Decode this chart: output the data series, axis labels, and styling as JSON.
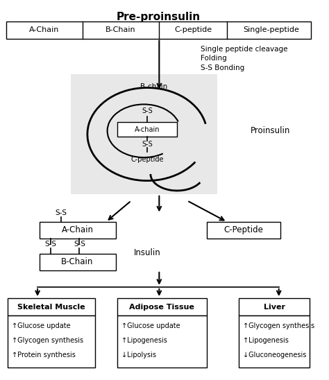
{
  "title": "Pre-proinsulin",
  "title_fontsize": 11,
  "header_cells": [
    "A-Chain",
    "B-Chain",
    "C-peptide",
    "Single-peptide"
  ],
  "step1_texts": [
    "Single peptide cleavage",
    "Folding",
    "S-S Bonding"
  ],
  "proinsulin_label": "Proinsulin",
  "insulin_label": "Insulin",
  "achain_label": "A-Chain",
  "bchain_label": "B-Chain",
  "cpeptide_label": "C-Peptide",
  "targets": [
    "Skeletal Muscle",
    "Adipose Tissue",
    "Liver"
  ],
  "skeletal_effects": [
    "↑Glucose update",
    "↑Glycogen synthesis",
    "↑Protein synthesis"
  ],
  "adipose_effects": [
    "↑Glucose update",
    "↑Lipogenesis",
    "↓Lipolysis"
  ],
  "liver_effects": [
    "↑Glycogen synthesis",
    "↑Lipogenesis",
    "↓Gluconeogenesis"
  ],
  "bg_color": "#ffffff",
  "text_color": "#000000",
  "arrow_color": "#000000"
}
